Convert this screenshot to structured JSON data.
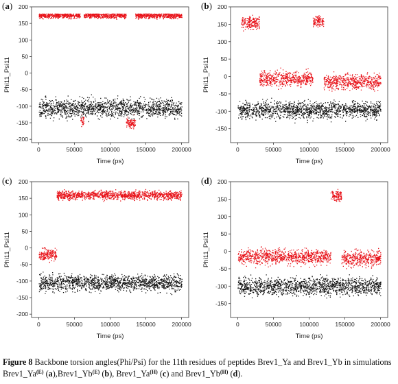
{
  "figure": {
    "caption": {
      "lead": "Figure 8",
      "text1": " Backbone torsion angles(Phi/Psi) for the 11th residues of peptides Brev1_Ya and Brev1_Yb in simulations Brev1_Ya",
      "sup_a": "(E)",
      "text2": " (",
      "ref_a": "a",
      "text3": "),Brev1_Yb",
      "sup_b": "(E)",
      "text4": " (",
      "ref_b": "b",
      "text5": "), Brev1_Ya",
      "sup_c": "(H)",
      "text6": " (",
      "ref_c": "c",
      "text7": ") and Brev1_Yb",
      "sup_d": "(H)",
      "text8": " (",
      "ref_d": "d",
      "text9": ")."
    },
    "colors": {
      "psi": "#e8131a",
      "phi": "#111111",
      "frame": "#333333"
    }
  },
  "chart_data": [
    {
      "panel": "a",
      "type": "scatter",
      "xlabel": "Time (ps)",
      "ylabel": "Phi11_Psi11",
      "xlim": [
        -10000,
        210000
      ],
      "ylim": [
        -210,
        200
      ],
      "xticks": [
        0,
        50000,
        100000,
        150000,
        200000
      ],
      "yticks": [
        -200,
        -150,
        -100,
        -50,
        0,
        50,
        100,
        150,
        200
      ],
      "series": [
        {
          "color": "red",
          "segments": [
            {
              "x": [
                0,
                58000
              ],
              "center": 175,
              "spread": 12
            },
            {
              "x": [
                58000,
                63000
              ],
              "center": -140,
              "spread": 25
            },
            {
              "x": [
                63000,
                122000
              ],
              "center": 175,
              "spread": 12
            },
            {
              "x": [
                122000,
                135000
              ],
              "center": -150,
              "spread": 25
            },
            {
              "x": [
                135000,
                200000
              ],
              "center": 175,
              "spread": 12
            }
          ]
        },
        {
          "color": "black",
          "segments": [
            {
              "x": [
                0,
                200000
              ],
              "center": -105,
              "spread": 40
            }
          ]
        }
      ]
    },
    {
      "panel": "b",
      "type": "scatter",
      "xlabel": "Time (ps)",
      "ylabel": "Phi11_Psi11",
      "xlim": [
        -10000,
        210000
      ],
      "ylim": [
        -190,
        200
      ],
      "xticks": [
        0,
        50000,
        100000,
        150000,
        200000
      ],
      "yticks": [
        -150,
        -100,
        -50,
        0,
        50,
        100,
        150,
        200
      ],
      "series": [
        {
          "color": "red",
          "segments": [
            {
              "x": [
                5000,
                30000
              ],
              "center": 155,
              "spread": 25
            },
            {
              "x": [
                30000,
                105000
              ],
              "center": -5,
              "spread": 30
            },
            {
              "x": [
                105000,
                120000
              ],
              "center": 160,
              "spread": 20
            },
            {
              "x": [
                120000,
                200000
              ],
              "center": -15,
              "spread": 30
            }
          ]
        },
        {
          "color": "black",
          "segments": [
            {
              "x": [
                0,
                200000
              ],
              "center": -95,
              "spread": 35
            }
          ]
        }
      ]
    },
    {
      "panel": "c",
      "type": "scatter",
      "xlabel": "Time (ps)",
      "ylabel": "Phi11_Psi11",
      "xlim": [
        -10000,
        210000
      ],
      "ylim": [
        -210,
        200
      ],
      "xticks": [
        0,
        50000,
        100000,
        150000,
        200000
      ],
      "yticks": [
        -200,
        -150,
        -100,
        -50,
        0,
        50,
        100,
        150,
        200
      ],
      "series": [
        {
          "color": "red",
          "segments": [
            {
              "x": [
                0,
                25000
              ],
              "center": -20,
              "spread": 25
            },
            {
              "x": [
                25000,
                200000
              ],
              "center": 160,
              "spread": 18
            }
          ]
        },
        {
          "color": "black",
          "segments": [
            {
              "x": [
                0,
                200000
              ],
              "center": -105,
              "spread": 35
            }
          ]
        }
      ]
    },
    {
      "panel": "d",
      "type": "scatter",
      "xlabel": "Time (ps)",
      "ylabel": "Phi11_Psi11",
      "xlim": [
        -10000,
        210000
      ],
      "ylim": [
        -190,
        200
      ],
      "xticks": [
        0,
        50000,
        100000,
        150000,
        200000
      ],
      "yticks": [
        -150,
        -100,
        -50,
        0,
        50,
        100,
        150,
        200
      ],
      "series": [
        {
          "color": "red",
          "segments": [
            {
              "x": [
                0,
                130000
              ],
              "center": -15,
              "spread": 30
            },
            {
              "x": [
                130000,
                145000
              ],
              "center": 160,
              "spread": 20
            },
            {
              "x": [
                145000,
                200000
              ],
              "center": -20,
              "spread": 30
            }
          ]
        },
        {
          "color": "black",
          "segments": [
            {
              "x": [
                0,
                200000
              ],
              "center": -100,
              "spread": 35
            }
          ]
        }
      ]
    }
  ]
}
